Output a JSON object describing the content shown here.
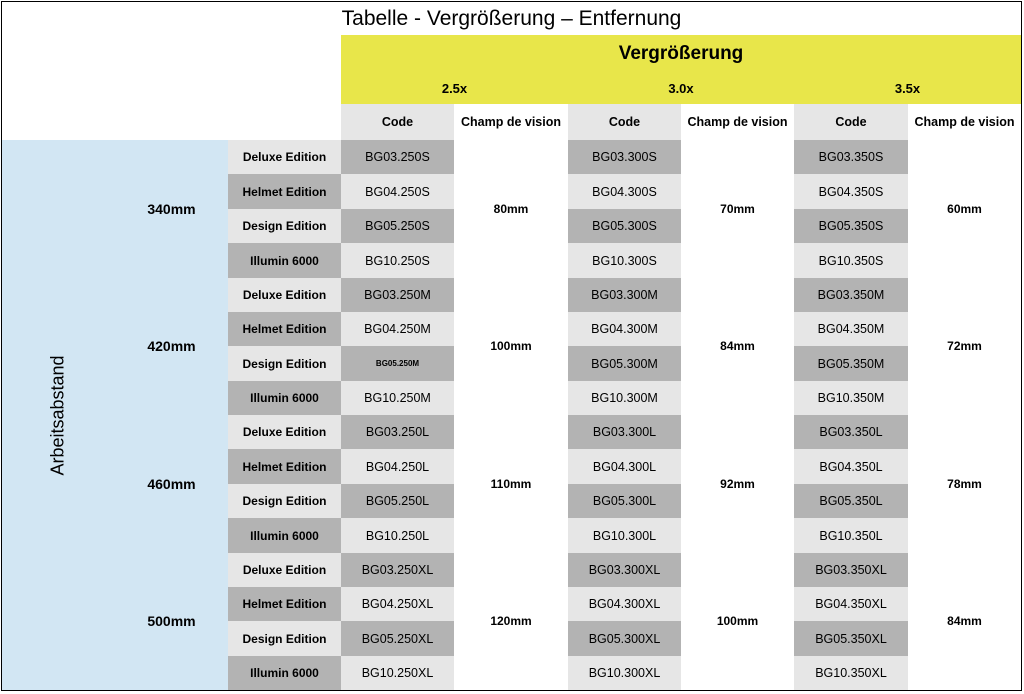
{
  "title": "Tabelle - Vergrößerung – Entfernung",
  "magnification_header": "Vergrößerung",
  "magnifications": [
    "2.5x",
    "3.0x",
    "3.5x"
  ],
  "column_headers": {
    "code": "Code",
    "fov": "Champ de vision"
  },
  "axis_label": "Arbeitsabstand",
  "editions": [
    "Deluxe Edition",
    "Helmet Edition",
    "Design Edition",
    "Illumin 6000"
  ],
  "groups": [
    {
      "distance": "340mm",
      "fov": [
        "80mm",
        "70mm",
        "60mm"
      ],
      "codes": [
        [
          "BG03.250S",
          "BG03.300S",
          "BG03.350S"
        ],
        [
          "BG04.250S",
          "BG04.300S",
          "BG04.350S"
        ],
        [
          "BG05.250S",
          "BG05.300S",
          "BG05.350S"
        ],
        [
          "BG10.250S",
          "BG10.300S",
          "BG10.350S"
        ]
      ]
    },
    {
      "distance": "420mm",
      "fov": [
        "100mm",
        "84mm",
        "72mm"
      ],
      "codes": [
        [
          "BG03.250M",
          "BG03.300M",
          "BG03.350M"
        ],
        [
          "BG04.250M",
          "BG04.300M",
          "BG04.350M"
        ],
        [
          "BG05.250M",
          "BG05.300M",
          "BG05.350M"
        ],
        [
          "BG10.250M",
          "BG10.300M",
          "BG10.350M"
        ]
      ]
    },
    {
      "distance": "460mm",
      "fov": [
        "110mm",
        "92mm",
        "78mm"
      ],
      "codes": [
        [
          "BG03.250L",
          "BG03.300L",
          "BG03.350L"
        ],
        [
          "BG04.250L",
          "BG04.300L",
          "BG04.350L"
        ],
        [
          "BG05.250L",
          "BG05.300L",
          "BG05.350L"
        ],
        [
          "BG10.250L",
          "BG10.300L",
          "BG10.350L"
        ]
      ]
    },
    {
      "distance": "500mm",
      "fov": [
        "120mm",
        "100mm",
        "84mm"
      ],
      "codes": [
        [
          "BG03.250XL",
          "BG03.300XL",
          "BG03.350XL"
        ],
        [
          "BG04.250XL",
          "BG04.300XL",
          "BG04.350XL"
        ],
        [
          "BG05.250XL",
          "BG05.300XL",
          "BG05.350XL"
        ],
        [
          "BG10.250XL",
          "BG10.300XL",
          "BG10.350XL"
        ]
      ]
    }
  ],
  "colors": {
    "yellow": "#e8e64a",
    "axis_blue": "#d2e6f3",
    "row_dark": "#b3b3b3",
    "row_light": "#e6e6e6"
  }
}
